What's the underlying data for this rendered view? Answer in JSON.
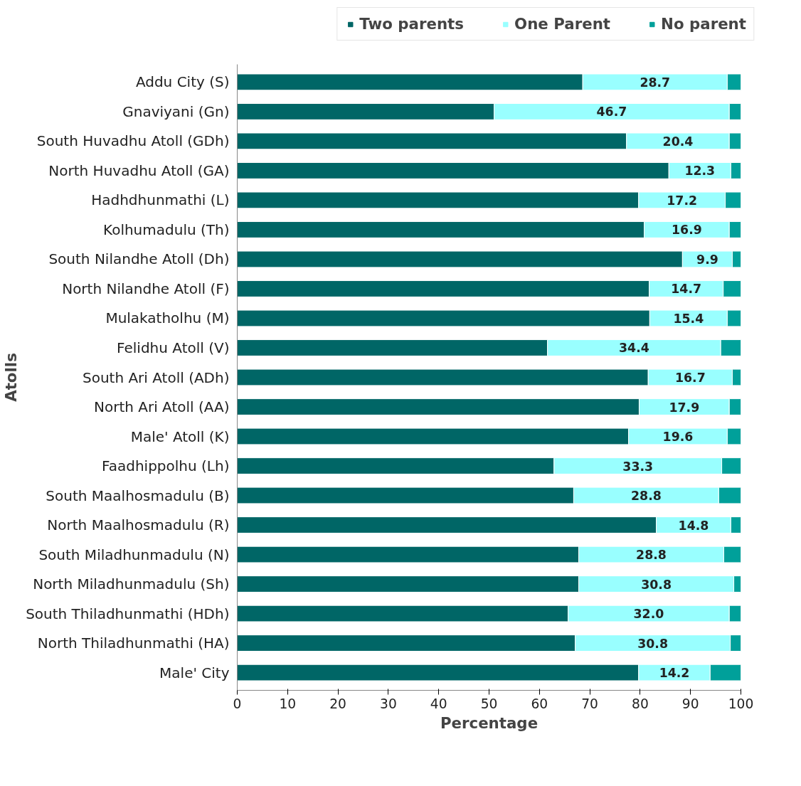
{
  "chart_data": {
    "type": "bar",
    "orientation": "horizontal",
    "stacked": true,
    "xlabel": "Percentage",
    "ylabel": "Atolls",
    "categories": [
      "Addu City (S)",
      "Gnaviyani (Gn)",
      "South Huvadhu Atoll (GDh)",
      "North Huvadhu Atoll (GA)",
      "Hadhdhunmathi (L)",
      "Kolhumadulu (Th)",
      "South Nilandhe Atoll (Dh)",
      "North Nilandhe Atoll (F)",
      "Mulakatholhu (M)",
      "Felidhu Atoll (V)",
      "South Ari Atoll (ADh)",
      "North Ari Atoll (AA)",
      "Male' Atoll (K)",
      "Faadhippolhu (Lh)",
      "South Maalhosmadulu (B)",
      "North Maalhosmadulu (R)",
      "South Miladhunmadulu (N)",
      "North Miladhunmadulu (Sh)",
      "South Thiladhunmathi (HDh)",
      "North Thiladhunmathi (HA)",
      "Male' City"
    ],
    "series": [
      {
        "name": "Two parents",
        "color": "#006666",
        "values": [
          68.6,
          51.0,
          77.3,
          85.7,
          79.7,
          80.8,
          88.4,
          81.8,
          81.9,
          61.6,
          81.6,
          79.8,
          77.7,
          62.9,
          66.8,
          83.2,
          67.8,
          67.8,
          65.7,
          67.1,
          79.7
        ]
      },
      {
        "name": "One Parent",
        "color": "#99ffff",
        "values": [
          28.7,
          46.7,
          20.4,
          12.3,
          17.2,
          16.9,
          9.9,
          14.7,
          15.4,
          34.4,
          16.7,
          17.9,
          19.6,
          33.3,
          28.8,
          14.8,
          28.8,
          30.8,
          32.0,
          30.8,
          14.2
        ],
        "value_labels": [
          "28.7",
          "46.7",
          "20.4",
          "12.3",
          "17.2",
          "16.9",
          "9.9",
          "14.7",
          "15.4",
          "34.4",
          "16.7",
          "17.9",
          "19.6",
          "33.3",
          "28.8",
          "14.8",
          "28.8",
          "30.8",
          "32.0",
          "30.8",
          "14.2"
        ]
      },
      {
        "name": "No parent",
        "color": "#00a09a",
        "values": [
          2.7,
          2.3,
          2.3,
          2.0,
          3.1,
          2.3,
          1.7,
          3.5,
          2.7,
          4.0,
          1.7,
          2.3,
          2.7,
          3.8,
          4.4,
          2.0,
          3.4,
          1.4,
          2.3,
          2.1,
          6.1
        ]
      }
    ],
    "xlim": [
      0,
      100
    ],
    "xticks": [
      0,
      10,
      20,
      30,
      40,
      50,
      60,
      70,
      80,
      90,
      100
    ],
    "grid": false,
    "legend": "top"
  }
}
